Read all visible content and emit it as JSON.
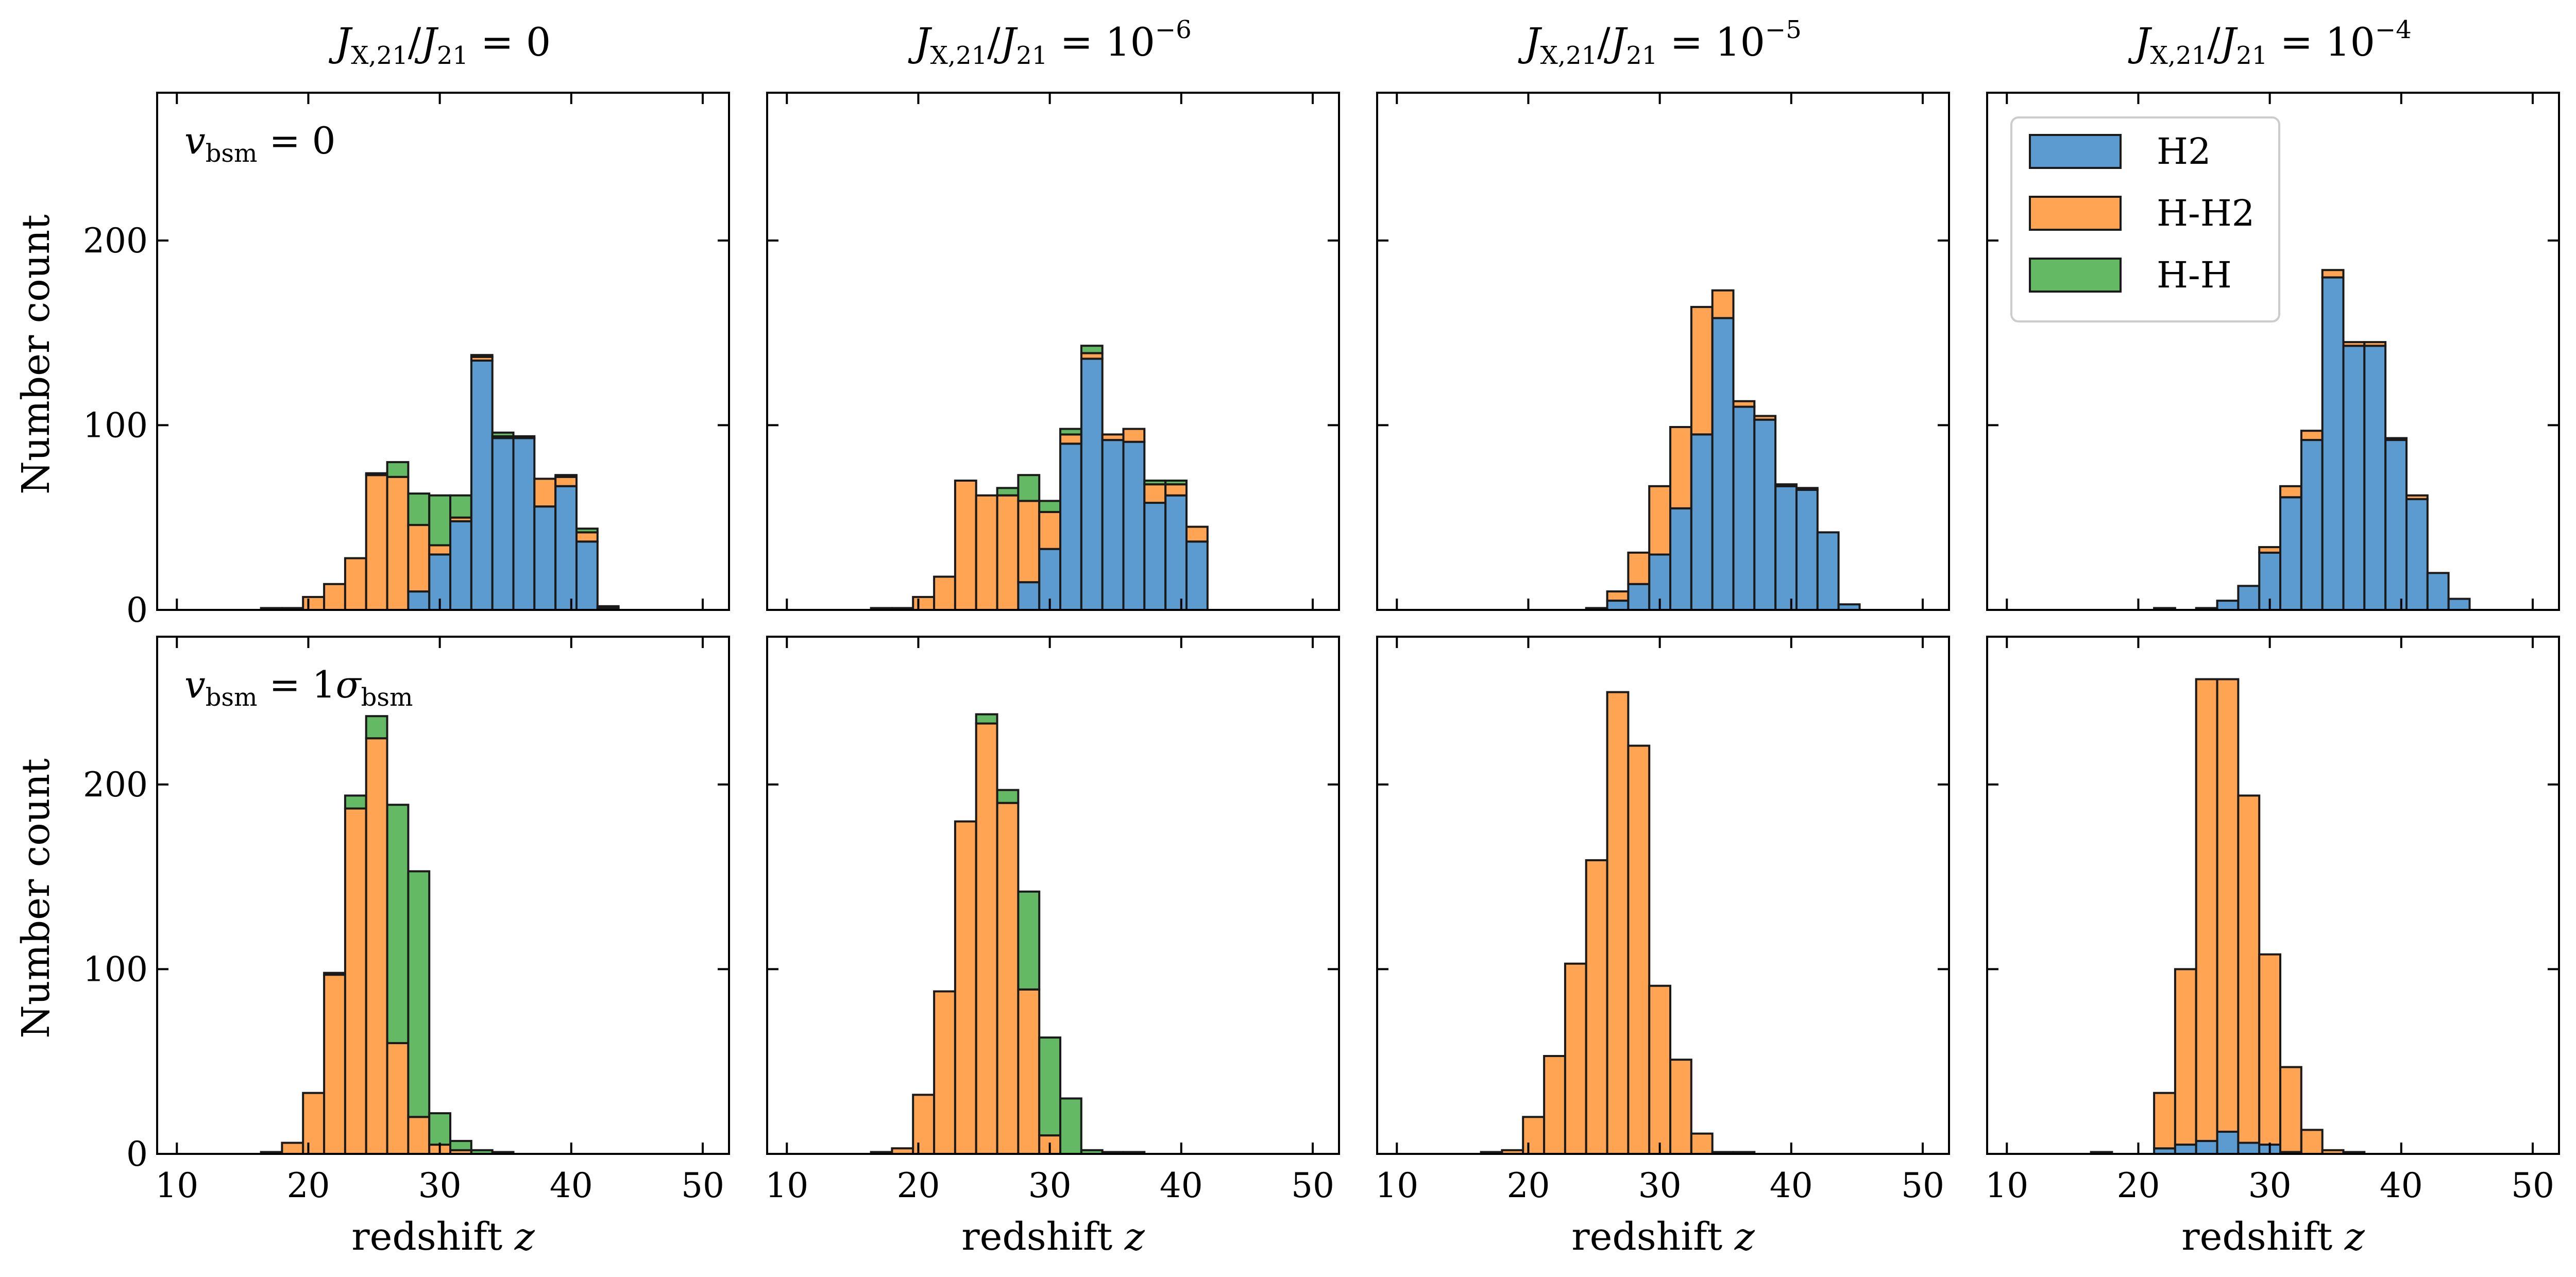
{
  "chart_data": {
    "type": "bar",
    "stacked": true,
    "grid": false,
    "legend_position": "top-left of last top panel",
    "colors": {
      "H2": "#5B9BD0",
      "H-H2": "#FFA452",
      "H-H": "#64BA64"
    },
    "legend": [
      "H2",
      "H-H2",
      "H-H"
    ],
    "xlabel": "redshift z",
    "ylabel": "Number count",
    "xlim": [
      8.5,
      52
    ],
    "ylim": [
      0,
      280
    ],
    "xticks": [
      10,
      20,
      30,
      40,
      50
    ],
    "yticks": [
      0,
      100,
      200
    ],
    "bin_width": 1.6,
    "bin_centers": [
      17.2,
      18.8,
      20.4,
      22.0,
      23.6,
      25.2,
      26.8,
      28.4,
      30.0,
      31.6,
      33.2,
      34.8,
      36.4,
      38.0,
      39.6,
      41.2,
      42.8,
      44.4
    ],
    "column_titles": [
      "J_X,21 / J_21 = 0",
      "J_X,21 / J_21 = 10^-6",
      "J_X,21 / J_21 = 10^-5",
      "J_X,21 / J_21 = 10^-4"
    ],
    "row_annotations": [
      "v_bsm = 0",
      "v_bsm = 1 σ_bsm"
    ],
    "panels": [
      {
        "row": 0,
        "col": 0,
        "series": [
          {
            "name": "H2",
            "values": [
              0,
              0,
              0,
              0,
              0,
              0,
              0,
              10,
              30,
              48,
              135,
              93,
              93,
              56,
              67,
              37,
              0,
              0
            ]
          },
          {
            "name": "H-H2",
            "values": [
              1,
              1,
              7,
              14,
              28,
              73,
              72,
              36,
              5,
              2,
              2,
              1,
              1,
              15,
              5,
              5,
              1,
              0
            ]
          },
          {
            "name": "H-H",
            "values": [
              0,
              0,
              0,
              0,
              0,
              1,
              8,
              17,
              27,
              12,
              1,
              2,
              0,
              0,
              1,
              2,
              1,
              0
            ]
          }
        ]
      },
      {
        "row": 0,
        "col": 1,
        "series": [
          {
            "name": "H2",
            "values": [
              0,
              0,
              0,
              0,
              0,
              0,
              0,
              15,
              33,
              90,
              136,
              92,
              91,
              58,
              62,
              37,
              0,
              0
            ]
          },
          {
            "name": "H-H2",
            "values": [
              1,
              1,
              7,
              18,
              70,
              62,
              62,
              44,
              20,
              5,
              3,
              3,
              7,
              10,
              6,
              8,
              0,
              0
            ]
          },
          {
            "name": "H-H",
            "values": [
              0,
              0,
              0,
              0,
              0,
              0,
              4,
              14,
              6,
              3,
              4,
              0,
              0,
              2,
              2,
              0,
              0,
              0
            ]
          }
        ]
      },
      {
        "row": 0,
        "col": 2,
        "series": [
          {
            "name": "H2",
            "values": [
              0,
              0,
              0,
              0,
              0,
              1,
              5,
              14,
              30,
              55,
              95,
              158,
              110,
              103,
              67,
              65,
              42,
              3
            ]
          },
          {
            "name": "H-H2",
            "values": [
              0,
              0,
              0,
              0,
              0,
              0,
              5,
              17,
              37,
              44,
              69,
              15,
              3,
              2,
              1,
              1,
              0,
              0
            ]
          },
          {
            "name": "H-H",
            "values": [
              0,
              0,
              0,
              0,
              0,
              0,
              0,
              0,
              0,
              0,
              0,
              0,
              0,
              0,
              0,
              0,
              0,
              0
            ]
          }
        ]
      },
      {
        "row": 0,
        "col": 3,
        "series": [
          {
            "name": "H2",
            "values": [
              0,
              0,
              0,
              1,
              0,
              1,
              5,
              13,
              31,
              61,
              92,
              180,
              143,
              143,
              92,
              60,
              20,
              6
            ]
          },
          {
            "name": "H-H2",
            "values": [
              0,
              0,
              0,
              0,
              0,
              0,
              0,
              0,
              3,
              6,
              5,
              4,
              2,
              2,
              1,
              2,
              0,
              0
            ]
          },
          {
            "name": "H-H",
            "values": [
              0,
              0,
              0,
              0,
              0,
              0,
              0,
              0,
              0,
              0,
              0,
              0,
              0,
              0,
              0,
              0,
              0,
              0
            ]
          }
        ]
      },
      {
        "row": 1,
        "col": 0,
        "series": [
          {
            "name": "H2",
            "values": [
              0,
              0,
              0,
              0,
              0,
              0,
              0,
              0,
              0,
              0,
              0,
              0,
              0,
              0,
              0,
              0,
              0,
              0
            ]
          },
          {
            "name": "H-H2",
            "values": [
              1,
              6,
              33,
              97,
              187,
              225,
              60,
              20,
              5,
              2,
              0,
              0,
              0,
              0,
              0,
              0,
              0,
              0
            ]
          },
          {
            "name": "H-H",
            "values": [
              0,
              0,
              0,
              1,
              7,
              12,
              129,
              133,
              17,
              5,
              2,
              1,
              0,
              0,
              0,
              0,
              0,
              0
            ]
          }
        ]
      },
      {
        "row": 1,
        "col": 1,
        "series": [
          {
            "name": "H2",
            "values": [
              0,
              0,
              0,
              0,
              0,
              0,
              0,
              0,
              0,
              0,
              0,
              0,
              0,
              0,
              0,
              0,
              0,
              0
            ]
          },
          {
            "name": "H-H2",
            "values": [
              1,
              3,
              32,
              88,
              180,
              233,
              190,
              89,
              10,
              0,
              0,
              0,
              0,
              0,
              0,
              0,
              0,
              0
            ]
          },
          {
            "name": "H-H",
            "values": [
              0,
              0,
              0,
              0,
              0,
              5,
              7,
              53,
              53,
              30,
              2,
              1,
              1,
              0,
              0,
              0,
              0,
              0
            ]
          }
        ]
      },
      {
        "row": 1,
        "col": 2,
        "series": [
          {
            "name": "H2",
            "values": [
              0,
              0,
              0,
              0,
              0,
              0,
              0,
              0,
              0,
              0,
              0,
              0,
              0,
              0,
              0,
              0,
              0,
              0
            ]
          },
          {
            "name": "H-H2",
            "values": [
              1,
              2,
              20,
              53,
              103,
              159,
              250,
              221,
              91,
              51,
              11,
              1,
              1,
              0,
              0,
              0,
              0,
              0
            ]
          },
          {
            "name": "H-H",
            "values": [
              0,
              0,
              0,
              0,
              0,
              0,
              0,
              0,
              0,
              0,
              0,
              0,
              0,
              0,
              0,
              0,
              0,
              0
            ]
          }
        ]
      },
      {
        "row": 1,
        "col": 3,
        "series": [
          {
            "name": "H2",
            "values": [
              1,
              0,
              0,
              3,
              5,
              7,
              12,
              6,
              5,
              1,
              0,
              0,
              0,
              0,
              0,
              0,
              0,
              0
            ]
          },
          {
            "name": "H-H2",
            "values": [
              0,
              0,
              0,
              30,
              95,
              250,
              245,
              188,
              103,
              46,
              13,
              2,
              1,
              0,
              0,
              0,
              0,
              0
            ]
          },
          {
            "name": "H-H",
            "values": [
              0,
              0,
              0,
              0,
              0,
              0,
              0,
              0,
              0,
              0,
              0,
              0,
              0,
              0,
              0,
              0,
              0,
              0
            ]
          }
        ]
      }
    ]
  }
}
